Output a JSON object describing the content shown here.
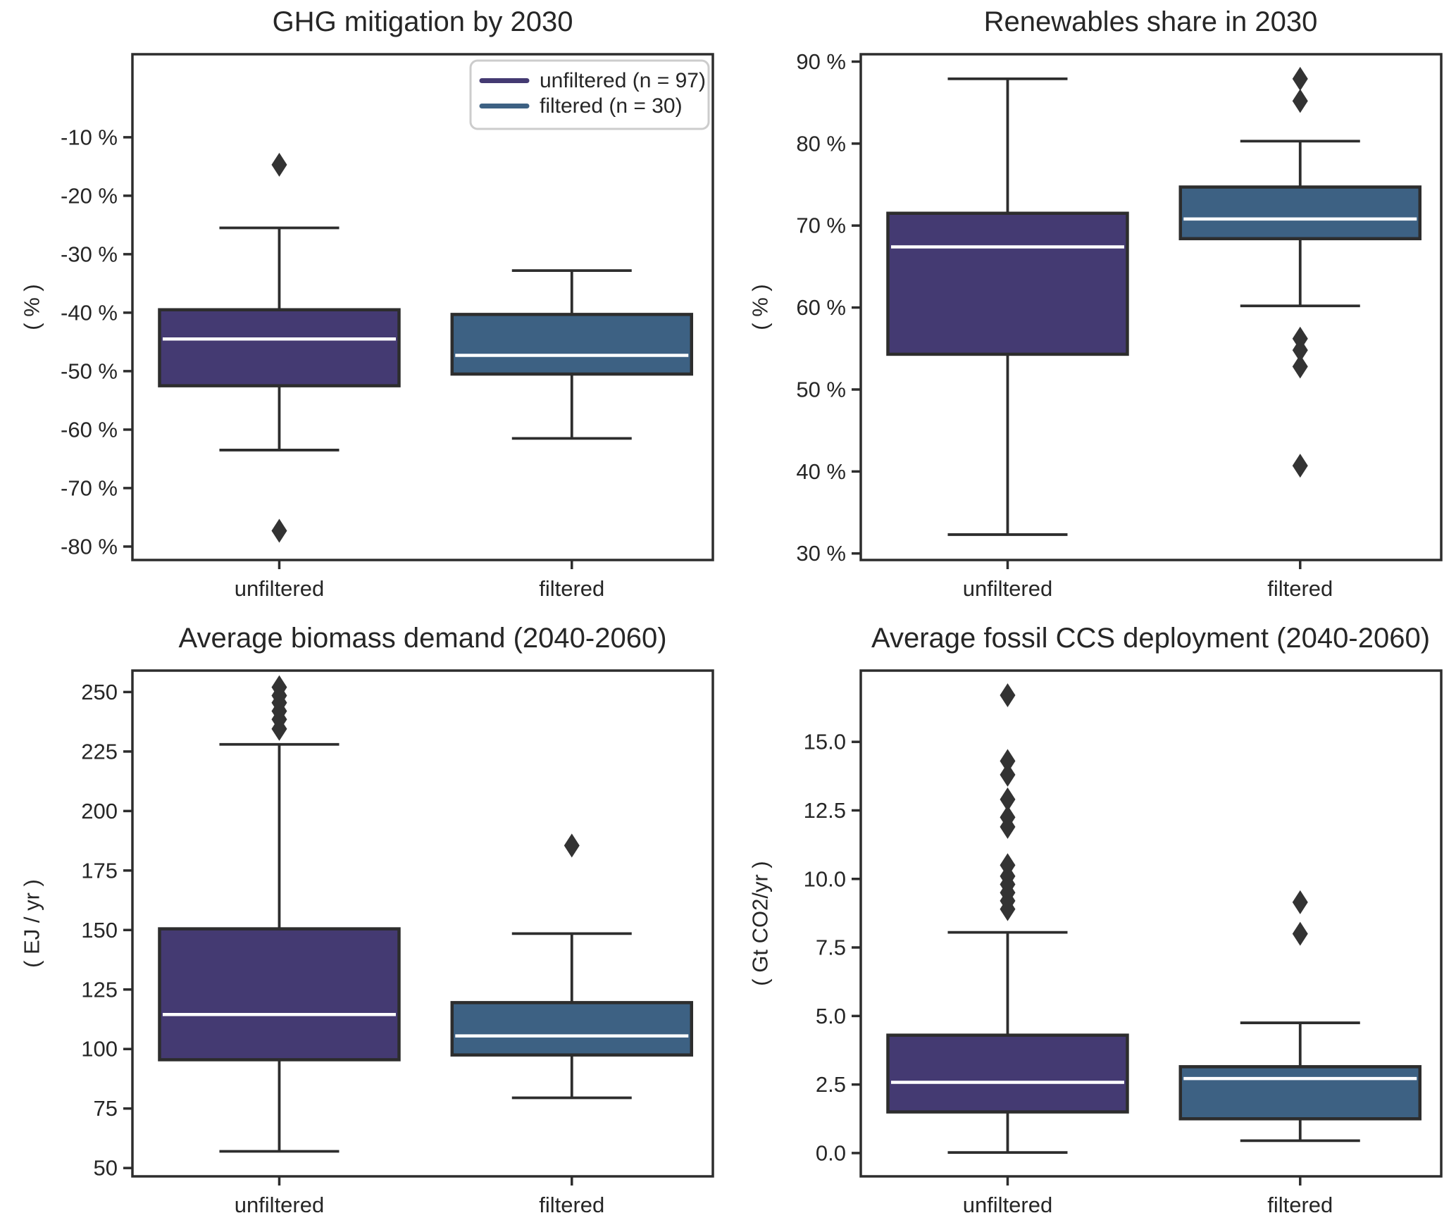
{
  "figure": {
    "background": "#ffffff",
    "text_color": "#262626",
    "line_color": "#2d2d2d",
    "median_color": "#ffffff",
    "flier_color": "#333333",
    "box_colors": {
      "unfiltered": "#443a72",
      "filtered": "#3d6183"
    },
    "legend": {
      "border_color": "#cccccc",
      "entries": [
        {
          "label": "unfiltered (n = 97)",
          "color": "#443a72"
        },
        {
          "label": "filtered (n = 30)",
          "color": "#3d6183"
        }
      ]
    }
  },
  "chart_data": [
    {
      "type": "box",
      "title": "GHG mitigation by 2030",
      "ylabel": "( % )",
      "xlabel": "",
      "ylim": [
        -82.3,
        4.2
      ],
      "yticks": [
        -80,
        -70,
        -60,
        -50,
        -40,
        -30,
        -20,
        -10
      ],
      "ytick_labels": [
        "-80 %",
        "-70 %",
        "-60 %",
        "-50 %",
        "-40 %",
        "-30 %",
        "-20 %",
        "-10 %"
      ],
      "categories": [
        "unfiltered",
        "filtered"
      ],
      "grid": false,
      "legend_visible": true,
      "legend_position": "upper right",
      "series": [
        {
          "name": "unfiltered",
          "color": "#443a72",
          "whislo": -63.5,
          "q1": -52.5,
          "med": -44.5,
          "q3": -39.5,
          "whishi": -25.5,
          "fliers": [
            -14.7,
            -77.3
          ]
        },
        {
          "name": "filtered",
          "color": "#3d6183",
          "whislo": -61.5,
          "q1": -50.5,
          "med": -47.3,
          "q3": -40.3,
          "whishi": -32.8,
          "fliers": []
        }
      ]
    },
    {
      "type": "box",
      "title": "Renewables share in 2030",
      "ylabel": "( % )",
      "xlabel": "",
      "ylim": [
        29.2,
        90.9
      ],
      "yticks": [
        30,
        40,
        50,
        60,
        70,
        80,
        90
      ],
      "ytick_labels": [
        "30 %",
        "40 %",
        "50 %",
        "60 %",
        "70 %",
        "80 %",
        "90 %"
      ],
      "categories": [
        "unfiltered",
        "filtered"
      ],
      "grid": false,
      "legend_visible": false,
      "series": [
        {
          "name": "unfiltered",
          "color": "#443a72",
          "whislo": 32.3,
          "q1": 54.3,
          "med": 67.4,
          "q3": 71.5,
          "whishi": 87.9,
          "fliers": []
        },
        {
          "name": "filtered",
          "color": "#3d6183",
          "whislo": 60.2,
          "q1": 68.4,
          "med": 70.8,
          "q3": 74.7,
          "whishi": 80.3,
          "fliers": [
            87.9,
            85.2,
            56.2,
            54.8,
            52.8,
            40.7
          ]
        }
      ]
    },
    {
      "type": "box",
      "title": "Average biomass demand (2040-2060)",
      "ylabel": "( EJ / yr )",
      "xlabel": "",
      "ylim": [
        46.5,
        259
      ],
      "yticks": [
        50,
        75,
        100,
        125,
        150,
        175,
        200,
        225,
        250
      ],
      "ytick_labels": [
        "50",
        "75",
        "100",
        "125",
        "150",
        "175",
        "200",
        "225",
        "250"
      ],
      "categories": [
        "unfiltered",
        "filtered"
      ],
      "grid": false,
      "legend_visible": false,
      "series": [
        {
          "name": "unfiltered",
          "color": "#443a72",
          "whislo": 57,
          "q1": 95.5,
          "med": 114.5,
          "q3": 150.5,
          "whishi": 228,
          "fliers": [
            252,
            248.5,
            245.5,
            242,
            238.5,
            234.5
          ]
        },
        {
          "name": "filtered",
          "color": "#3d6183",
          "whislo": 79.5,
          "q1": 97.5,
          "med": 105.5,
          "q3": 119.5,
          "whishi": 148.5,
          "fliers": [
            185.5
          ]
        }
      ]
    },
    {
      "type": "box",
      "title": "Average fossil CCS deployment (2040-2060)",
      "ylabel": "( Gt CO2/yr )",
      "xlabel": "",
      "ylim": [
        -0.85,
        17.6
      ],
      "yticks": [
        0.0,
        2.5,
        5.0,
        7.5,
        10.0,
        12.5,
        15.0
      ],
      "ytick_labels": [
        "0.0",
        "2.5",
        "5.0",
        "7.5",
        "10.0",
        "12.5",
        "15.0"
      ],
      "categories": [
        "unfiltered",
        "filtered"
      ],
      "grid": false,
      "legend_visible": false,
      "series": [
        {
          "name": "unfiltered",
          "color": "#443a72",
          "whislo": 0.02,
          "q1": 1.5,
          "med": 2.58,
          "q3": 4.3,
          "whishi": 8.05,
          "fliers": [
            16.7,
            14.3,
            13.8,
            12.9,
            12.25,
            11.9,
            10.5,
            10.1,
            9.8,
            9.5,
            9.2,
            8.9
          ]
        },
        {
          "name": "filtered",
          "color": "#3d6183",
          "whislo": 0.45,
          "q1": 1.25,
          "med": 2.72,
          "q3": 3.15,
          "whishi": 4.75,
          "fliers": [
            9.15,
            8.0
          ]
        }
      ]
    }
  ]
}
